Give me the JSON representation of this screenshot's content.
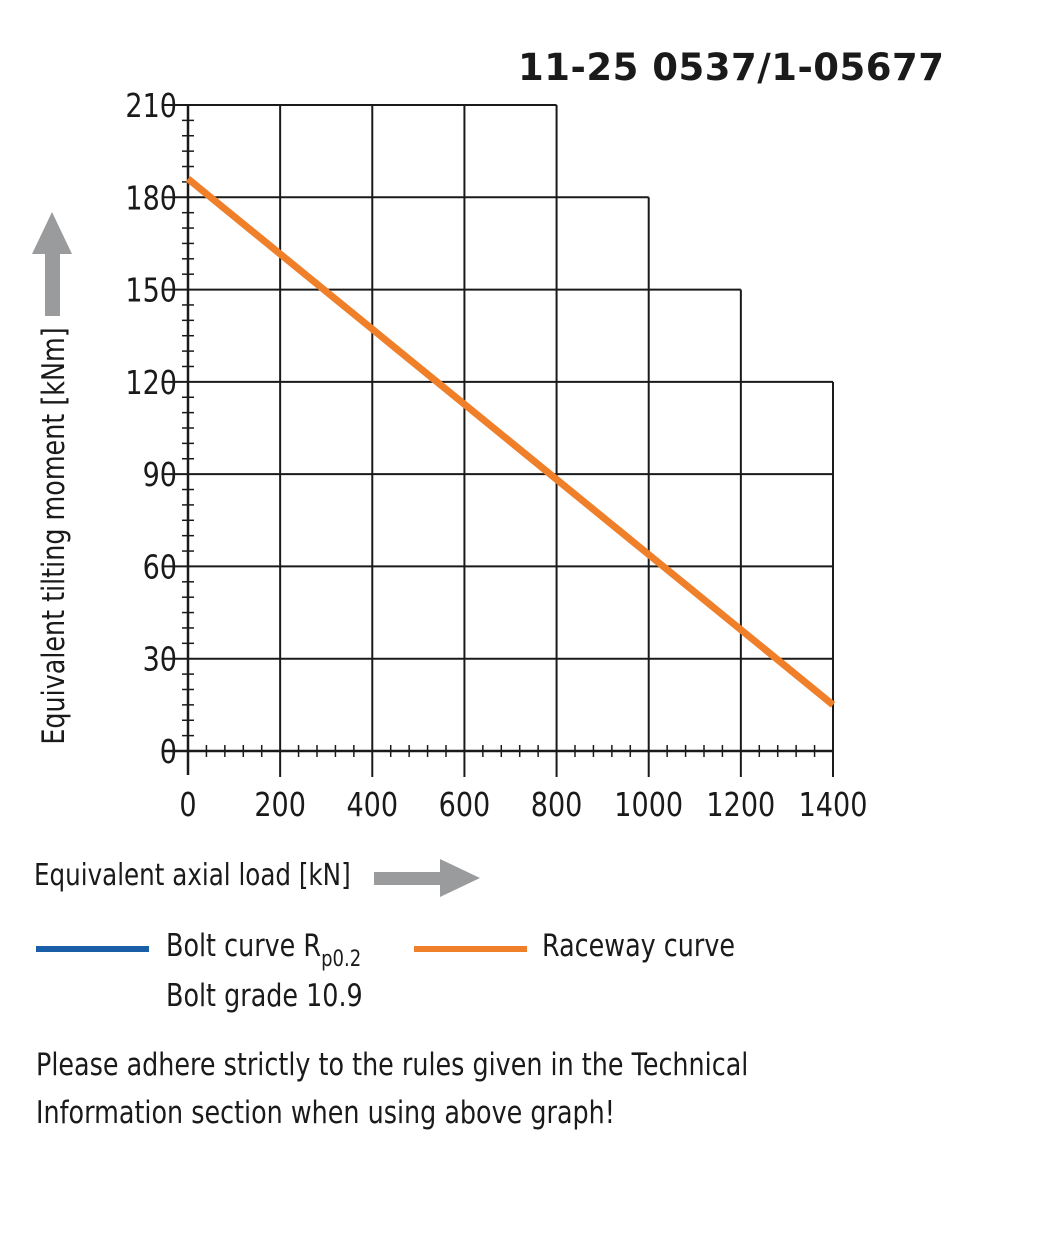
{
  "title": "11-25 0537/1-05677",
  "chart_data": {
    "type": "line",
    "xlabel": "Equivalent axial load [kN]",
    "ylabel": "Equivalent tilting moment [kNm]",
    "xlim": [
      0,
      1400
    ],
    "ylim": [
      0,
      210
    ],
    "x_ticks": [
      0,
      200,
      400,
      600,
      800,
      1000,
      1200,
      1400
    ],
    "y_ticks": [
      0,
      30,
      60,
      90,
      120,
      150,
      180,
      210
    ],
    "x_tick_labels": [
      "0",
      "200",
      "400",
      "600",
      "800",
      "1000",
      "1200",
      "1400"
    ],
    "y_tick_labels": [
      "0",
      "30",
      "60",
      "90",
      "120",
      "150",
      "180",
      "210"
    ],
    "grid": "stepped",
    "grid_steps": [
      {
        "y": 210,
        "x_max": 800
      },
      {
        "y": 180,
        "x_max": 1000
      },
      {
        "y": 150,
        "x_max": 1200
      },
      {
        "y": 120,
        "x_max": 1400
      }
    ],
    "series": [
      {
        "name": "Raceway curve",
        "color": "#f07f2a",
        "x": [
          0,
          1400
        ],
        "y": [
          186,
          15
        ]
      }
    ]
  },
  "legend": {
    "bolt_label": "Bolt curve  R",
    "bolt_sub": "p0.2",
    "bolt_grade": "Bolt grade 10.9",
    "bolt_color": "#1b5ea8",
    "raceway_label": "Raceway curve",
    "raceway_color": "#f07f2a"
  },
  "note_line1": "Please adhere strictly to the rules given in the Technical",
  "note_line2": "Information section when using above graph!",
  "arrow_color": "#9a9b9c"
}
